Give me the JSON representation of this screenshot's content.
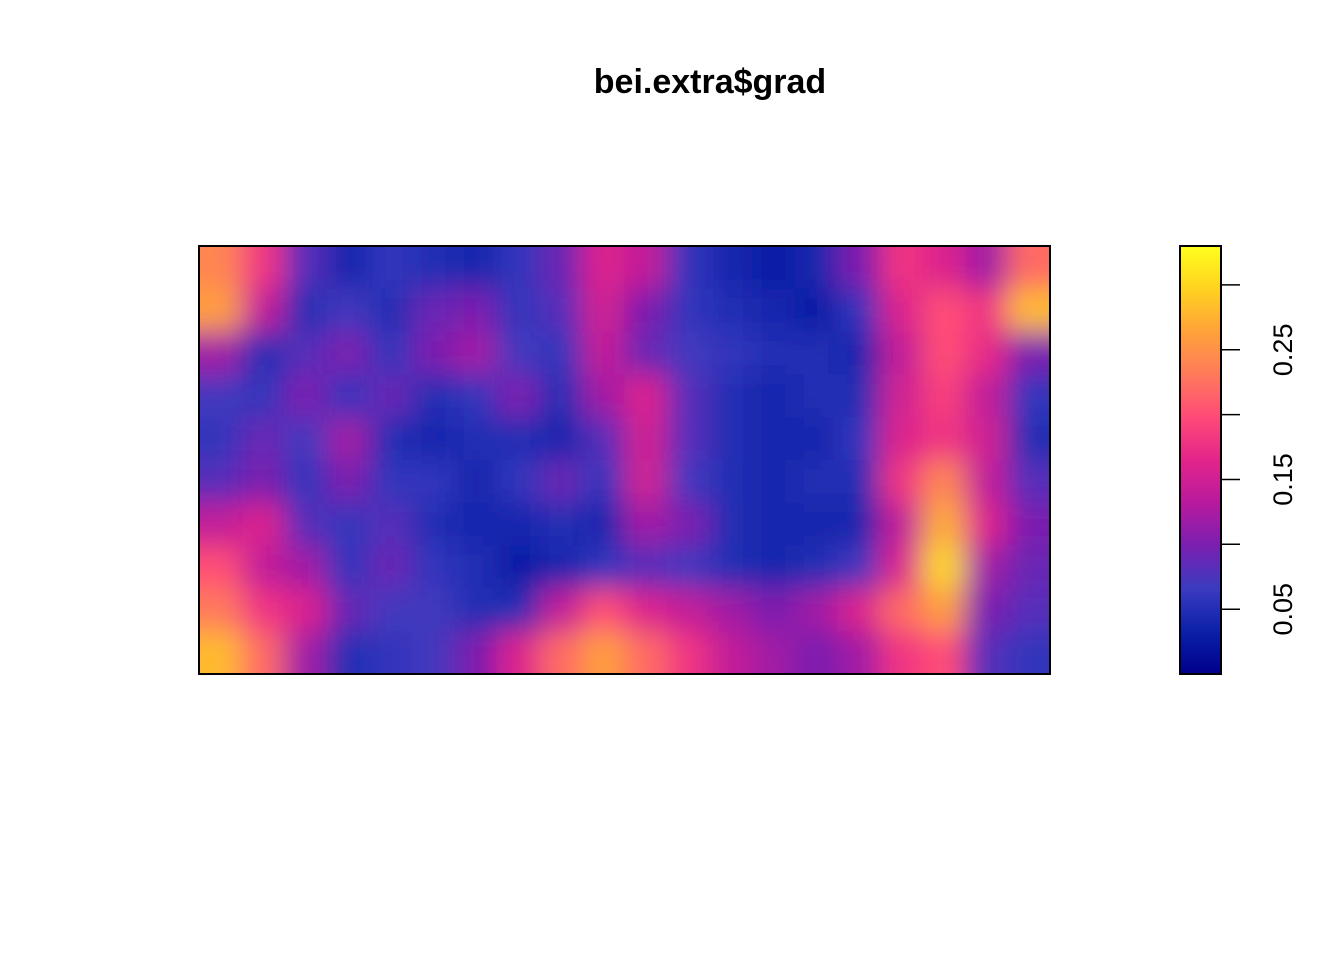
{
  "chart_data": {
    "type": "heatmap",
    "title": "bei.extra$grad",
    "xlabel": "",
    "ylabel": "",
    "axes_shown": false,
    "grid": false,
    "legend": {
      "type": "colorbar",
      "placement": "right",
      "range": [
        0.0,
        0.33
      ],
      "ticks": [
        0.05,
        0.1,
        0.15,
        0.2,
        0.25,
        0.3
      ],
      "tick_labels": [
        "0.05",
        "",
        "0.15",
        "",
        "0.25",
        ""
      ]
    },
    "colormap": [
      "#00008b",
      "#0b20a8",
      "#3b3bc0",
      "#7a1fb0",
      "#b81a9e",
      "#e3258a",
      "#ff4a78",
      "#ff7a5a",
      "#ffa23a",
      "#ffd21f",
      "#ffff1e"
    ],
    "value_grid_note_free": true,
    "grid_rows": 10,
    "grid_cols": 20,
    "values": [
      [
        0.24,
        0.18,
        0.08,
        0.04,
        0.06,
        0.05,
        0.04,
        0.06,
        0.09,
        0.16,
        0.14,
        0.06,
        0.04,
        0.03,
        0.04,
        0.1,
        0.18,
        0.16,
        0.12,
        0.22
      ],
      [
        0.26,
        0.14,
        0.05,
        0.07,
        0.05,
        0.09,
        0.1,
        0.06,
        0.08,
        0.15,
        0.1,
        0.06,
        0.05,
        0.04,
        0.03,
        0.06,
        0.16,
        0.2,
        0.18,
        0.28
      ],
      [
        0.12,
        0.05,
        0.08,
        0.1,
        0.06,
        0.1,
        0.12,
        0.07,
        0.06,
        0.14,
        0.09,
        0.07,
        0.06,
        0.05,
        0.05,
        0.04,
        0.14,
        0.2,
        0.17,
        0.1
      ],
      [
        0.07,
        0.06,
        0.1,
        0.06,
        0.09,
        0.05,
        0.06,
        0.1,
        0.05,
        0.12,
        0.16,
        0.08,
        0.05,
        0.04,
        0.05,
        0.05,
        0.15,
        0.19,
        0.14,
        0.06
      ],
      [
        0.06,
        0.09,
        0.07,
        0.12,
        0.05,
        0.04,
        0.05,
        0.05,
        0.04,
        0.08,
        0.15,
        0.08,
        0.05,
        0.04,
        0.04,
        0.06,
        0.16,
        0.18,
        0.15,
        0.05
      ],
      [
        0.08,
        0.1,
        0.06,
        0.1,
        0.06,
        0.06,
        0.04,
        0.06,
        0.09,
        0.06,
        0.15,
        0.07,
        0.05,
        0.04,
        0.05,
        0.05,
        0.18,
        0.24,
        0.14,
        0.08
      ],
      [
        0.14,
        0.16,
        0.08,
        0.06,
        0.08,
        0.05,
        0.04,
        0.04,
        0.05,
        0.04,
        0.12,
        0.1,
        0.05,
        0.04,
        0.04,
        0.04,
        0.14,
        0.27,
        0.16,
        0.1
      ],
      [
        0.2,
        0.14,
        0.12,
        0.06,
        0.09,
        0.06,
        0.05,
        0.03,
        0.04,
        0.06,
        0.08,
        0.07,
        0.05,
        0.04,
        0.05,
        0.07,
        0.16,
        0.3,
        0.12,
        0.09
      ],
      [
        0.23,
        0.18,
        0.16,
        0.09,
        0.07,
        0.07,
        0.05,
        0.05,
        0.14,
        0.2,
        0.16,
        0.14,
        0.12,
        0.1,
        0.12,
        0.16,
        0.22,
        0.26,
        0.1,
        0.08
      ],
      [
        0.28,
        0.22,
        0.12,
        0.05,
        0.06,
        0.07,
        0.1,
        0.16,
        0.22,
        0.26,
        0.22,
        0.18,
        0.14,
        0.12,
        0.1,
        0.12,
        0.18,
        0.2,
        0.08,
        0.06
      ]
    ]
  }
}
